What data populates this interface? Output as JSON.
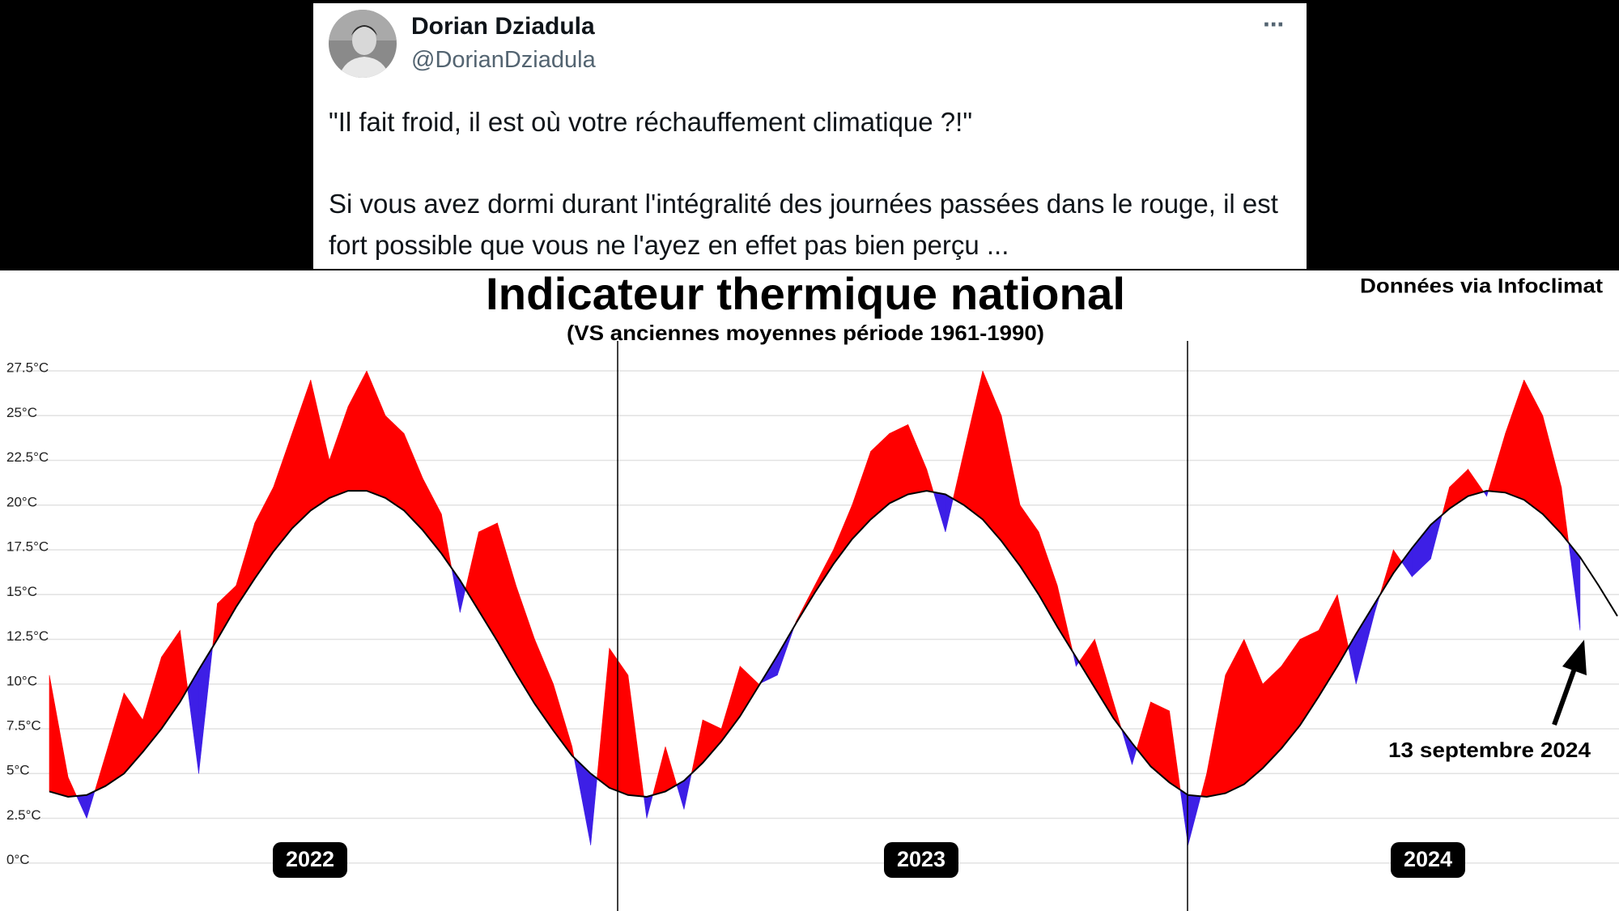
{
  "tweet": {
    "name": "Dorian Dziadula",
    "handle": "@DorianDziadula",
    "menu": "···",
    "text": [
      "\"Il fait froid, il est où votre réchauffement climatique ?!\"",
      "Si vous avez dormi durant l'intégralité des journées passées dans le rouge, il est fort possible que vous ne l'ayez en effet pas bien perçu ..."
    ]
  },
  "chart_data": {
    "type": "area",
    "title": "Indicateur thermique national",
    "subtitle": "(VS anciennes moyennes période 1961-1990)",
    "source": "Données via Infoclimat",
    "annotation": "13 septembre 2024",
    "year_labels": [
      "2022",
      "2023",
      "2024"
    ],
    "series": [
      {
        "color": "#000000",
        "values": [
          4.0,
          3.7,
          3.8,
          4.3,
          5.0,
          6.2,
          7.5,
          9.0,
          10.8,
          12.5,
          14.3,
          15.9,
          17.4,
          18.7,
          19.7,
          20.4,
          20.8,
          20.8,
          20.4,
          19.7,
          18.6,
          17.3,
          15.8,
          14.1,
          12.4,
          10.6,
          8.9,
          7.4,
          6.0,
          5.0,
          4.2,
          3.8,
          3.7,
          4.0,
          4.6,
          5.6,
          6.8,
          8.2,
          9.9,
          11.6,
          13.4,
          15.1,
          16.7,
          18.1,
          19.2,
          20.1,
          20.6,
          20.8,
          20.6,
          20.0,
          19.2,
          18.0,
          16.6,
          15.0,
          13.2,
          11.5,
          9.8,
          8.1,
          6.7,
          5.4,
          4.5,
          3.8,
          3.7,
          3.9,
          4.4,
          5.3,
          6.4,
          7.7,
          9.3,
          11.0,
          12.8,
          14.5,
          16.2,
          17.6,
          18.9,
          19.8,
          20.5,
          20.8,
          20.7,
          20.3,
          19.5,
          18.4,
          17.1,
          15.5,
          13.8
        ]
      },
      {
        "color": "#ff0000",
        "below_color": "#3d1fe6",
        "values": [
          10.5,
          4.8,
          2.5,
          6.0,
          9.5,
          8.0,
          11.5,
          13.0,
          5.0,
          14.5,
          15.5,
          19.0,
          21.0,
          24.0,
          27.0,
          22.5,
          25.5,
          27.5,
          25.0,
          24.0,
          21.5,
          19.5,
          14.0,
          18.5,
          19.0,
          15.5,
          12.5,
          10.0,
          6.5,
          1.0,
          12.0,
          10.5,
          2.5,
          6.5,
          3.0,
          8.0,
          7.5,
          11.0,
          10.0,
          10.5,
          13.5,
          15.5,
          17.5,
          20.0,
          23.0,
          24.0,
          24.5,
          22.0,
          18.5,
          23.0,
          27.5,
          25.0,
          20.0,
          18.5,
          15.5,
          11.0,
          12.5,
          9.0,
          5.5,
          9.0,
          8.5,
          1.0,
          5.0,
          10.5,
          12.5,
          10.0,
          11.0,
          12.5,
          13.0,
          15.0,
          10.0,
          14.0,
          17.5,
          16.0,
          17.0,
          21.0,
          22.0,
          20.5,
          24.0,
          27.0,
          25.0,
          21.0,
          13.0,
          null,
          null
        ]
      }
    ],
    "ylim": [
      -2.5,
      28
    ],
    "yticks": [
      {
        "value": 0,
        "label": "0°C"
      },
      {
        "value": 2.5,
        "label": "2.5°C"
      },
      {
        "value": 5,
        "label": "5°C"
      },
      {
        "value": 7.5,
        "label": "7.5°C"
      },
      {
        "value": 10,
        "label": "10°C"
      },
      {
        "value": 12.5,
        "label": "12.5°C"
      },
      {
        "value": 15,
        "label": "15°C"
      },
      {
        "value": 17.5,
        "label": "17.5°C"
      },
      {
        "value": 20,
        "label": "20°C"
      },
      {
        "value": 22.5,
        "label": "22.5°C"
      },
      {
        "value": 25,
        "label": "25°C"
      },
      {
        "value": 27.5,
        "label": "27.5°C"
      }
    ],
    "grid": true
  }
}
